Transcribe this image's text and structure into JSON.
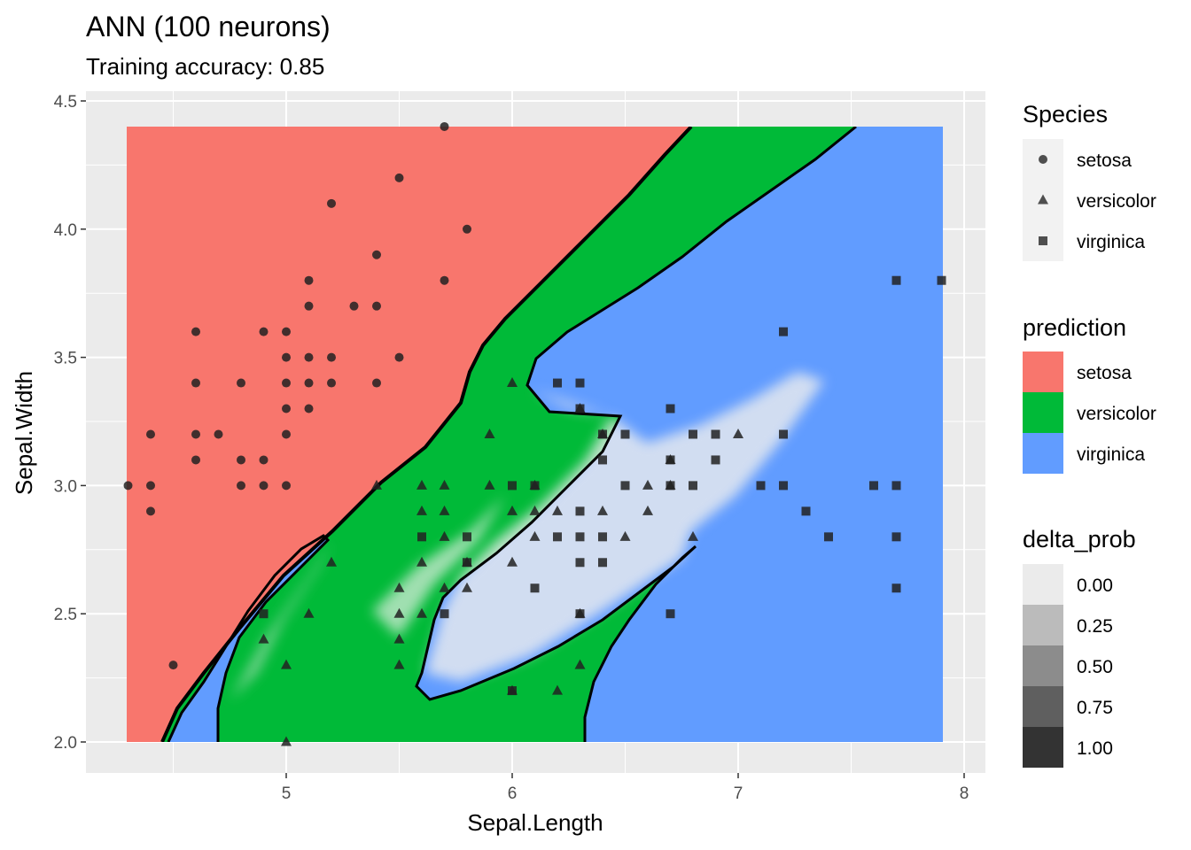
{
  "title": "ANN (100 neurons)",
  "subtitle": "Training accuracy: 0.85",
  "chart_data": {
    "type": "scatter",
    "xlabel": "Sepal.Length",
    "ylabel": "Sepal.Width",
    "xlim": [
      4.2,
      8.1
    ],
    "ylim": [
      1.9,
      4.55
    ],
    "x_ticks": [
      "5",
      "6",
      "7",
      "8"
    ],
    "y_ticks": [
      "2.0",
      "2.5",
      "3.0",
      "3.5",
      "4.0",
      "4.5"
    ],
    "grid": true,
    "legend_position": "right",
    "prediction_region": {
      "x_range": [
        4.3,
        7.9
      ],
      "y_range": [
        2.0,
        4.4
      ],
      "colors": {
        "setosa": "#F8766D",
        "versicolor": "#00BA38",
        "virginica": "#619CFF"
      }
    },
    "species": [
      {
        "name": "setosa",
        "shape": "circle",
        "points": [
          [
            4.3,
            3.0
          ],
          [
            4.4,
            2.9
          ],
          [
            4.4,
            3.0
          ],
          [
            4.4,
            3.2
          ],
          [
            4.5,
            2.3
          ],
          [
            4.6,
            3.1
          ],
          [
            4.6,
            3.2
          ],
          [
            4.6,
            3.4
          ],
          [
            4.6,
            3.6
          ],
          [
            4.7,
            3.2
          ],
          [
            4.8,
            3.0
          ],
          [
            4.8,
            3.1
          ],
          [
            4.8,
            3.4
          ],
          [
            4.9,
            3.0
          ],
          [
            4.9,
            3.1
          ],
          [
            4.9,
            3.6
          ],
          [
            5.0,
            3.0
          ],
          [
            5.0,
            3.2
          ],
          [
            5.0,
            3.3
          ],
          [
            5.0,
            3.4
          ],
          [
            5.0,
            3.5
          ],
          [
            5.0,
            3.6
          ],
          [
            5.1,
            3.3
          ],
          [
            5.1,
            3.4
          ],
          [
            5.1,
            3.5
          ],
          [
            5.1,
            3.7
          ],
          [
            5.1,
            3.8
          ],
          [
            5.2,
            3.4
          ],
          [
            5.2,
            3.5
          ],
          [
            5.2,
            4.1
          ],
          [
            5.3,
            3.7
          ],
          [
            5.4,
            3.4
          ],
          [
            5.4,
            3.7
          ],
          [
            5.4,
            3.9
          ],
          [
            5.5,
            3.5
          ],
          [
            5.5,
            4.2
          ],
          [
            5.7,
            3.8
          ],
          [
            5.7,
            4.4
          ],
          [
            5.8,
            4.0
          ]
        ]
      },
      {
        "name": "versicolor",
        "shape": "triangle",
        "points": [
          [
            4.9,
            2.4
          ],
          [
            5.0,
            2.0
          ],
          [
            5.0,
            2.3
          ],
          [
            5.1,
            2.5
          ],
          [
            5.2,
            2.7
          ],
          [
            5.4,
            3.0
          ],
          [
            5.5,
            2.3
          ],
          [
            5.5,
            2.4
          ],
          [
            5.5,
            2.5
          ],
          [
            5.5,
            2.6
          ],
          [
            5.6,
            2.5
          ],
          [
            5.6,
            2.7
          ],
          [
            5.6,
            2.9
          ],
          [
            5.6,
            3.0
          ],
          [
            5.7,
            2.6
          ],
          [
            5.7,
            2.8
          ],
          [
            5.7,
            2.9
          ],
          [
            5.7,
            3.0
          ],
          [
            5.8,
            2.6
          ],
          [
            5.8,
            2.7
          ],
          [
            5.9,
            3.0
          ],
          [
            5.9,
            3.2
          ],
          [
            6.0,
            2.2
          ],
          [
            6.0,
            2.7
          ],
          [
            6.0,
            2.9
          ],
          [
            6.0,
            3.4
          ],
          [
            6.1,
            2.8
          ],
          [
            6.1,
            2.9
          ],
          [
            6.1,
            3.0
          ],
          [
            6.2,
            2.2
          ],
          [
            6.2,
            2.9
          ],
          [
            6.3,
            2.3
          ],
          [
            6.3,
            2.5
          ],
          [
            6.3,
            3.3
          ],
          [
            6.4,
            2.9
          ],
          [
            6.4,
            3.2
          ],
          [
            6.5,
            2.8
          ],
          [
            6.6,
            2.9
          ],
          [
            6.6,
            3.0
          ],
          [
            6.7,
            3.0
          ],
          [
            6.7,
            3.1
          ],
          [
            6.8,
            2.8
          ],
          [
            7.0,
            3.2
          ]
        ]
      },
      {
        "name": "virginica",
        "shape": "square",
        "points": [
          [
            4.9,
            2.5
          ],
          [
            5.6,
            2.8
          ],
          [
            5.7,
            2.5
          ],
          [
            5.8,
            2.7
          ],
          [
            5.8,
            2.8
          ],
          [
            6.0,
            2.2
          ],
          [
            6.0,
            3.0
          ],
          [
            6.1,
            2.6
          ],
          [
            6.1,
            3.0
          ],
          [
            6.2,
            2.8
          ],
          [
            6.2,
            3.4
          ],
          [
            6.3,
            2.5
          ],
          [
            6.3,
            2.7
          ],
          [
            6.3,
            2.8
          ],
          [
            6.3,
            2.9
          ],
          [
            6.3,
            3.3
          ],
          [
            6.3,
            3.4
          ],
          [
            6.4,
            2.7
          ],
          [
            6.4,
            2.8
          ],
          [
            6.4,
            3.1
          ],
          [
            6.4,
            3.2
          ],
          [
            6.5,
            3.0
          ],
          [
            6.5,
            3.2
          ],
          [
            6.7,
            2.5
          ],
          [
            6.7,
            3.0
          ],
          [
            6.7,
            3.1
          ],
          [
            6.7,
            3.3
          ],
          [
            6.8,
            3.0
          ],
          [
            6.8,
            3.2
          ],
          [
            6.9,
            3.1
          ],
          [
            6.9,
            3.2
          ],
          [
            7.1,
            3.0
          ],
          [
            7.2,
            3.0
          ],
          [
            7.2,
            3.2
          ],
          [
            7.2,
            3.6
          ],
          [
            7.3,
            2.9
          ],
          [
            7.4,
            2.8
          ],
          [
            7.6,
            3.0
          ],
          [
            7.7,
            2.6
          ],
          [
            7.7,
            2.8
          ],
          [
            7.7,
            3.0
          ],
          [
            7.7,
            3.8
          ],
          [
            7.9,
            3.8
          ]
        ]
      }
    ],
    "legends": {
      "species": {
        "title": "Species",
        "items": [
          "setosa",
          "versicolor",
          "virginica"
        ]
      },
      "prediction": {
        "title": "prediction",
        "items": [
          {
            "label": "setosa",
            "color": "#F8766D"
          },
          {
            "label": "versicolor",
            "color": "#00BA38"
          },
          {
            "label": "virginica",
            "color": "#619CFF"
          }
        ]
      },
      "delta_prob": {
        "title": "delta_prob",
        "items": [
          {
            "label": "0.00",
            "color": "#ebebeb"
          },
          {
            "label": "0.25",
            "color": "#bbbbbb"
          },
          {
            "label": "0.50",
            "color": "#8c8c8c"
          },
          {
            "label": "0.75",
            "color": "#5f5f5f"
          },
          {
            "label": "1.00",
            "color": "#333333"
          }
        ]
      }
    }
  }
}
